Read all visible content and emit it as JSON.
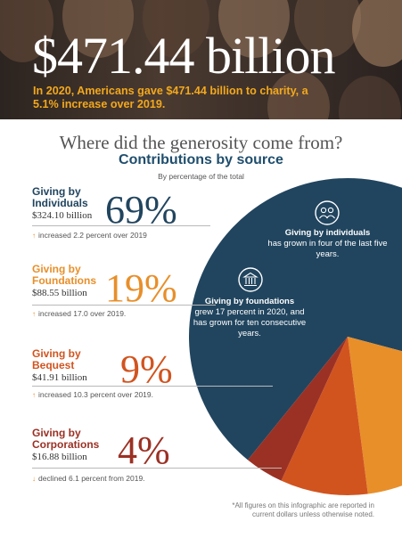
{
  "hero": {
    "headline": "$471.44 billion",
    "subhead": "In 2020, Americans gave $471.44 billion to charity, a 5.1% increase over 2019."
  },
  "section_title": "Where did the generosity come from?",
  "colors": {
    "individuals": "#21455f",
    "foundations": "#e88f2a",
    "bequest": "#d1541f",
    "corporations": "#9b3124",
    "hero_accent": "#f2a81d"
  },
  "sources": [
    {
      "label": "Giving by Individuals",
      "amount": "$324.10 billion",
      "percent_label": "69%",
      "change": "increased 2.2 percent over 2019",
      "direction": "up"
    },
    {
      "label": "Giving by Foundations",
      "amount": "$88.55 billion",
      "percent_label": "19%",
      "change": "increased 17.0 over 2019.",
      "direction": "up"
    },
    {
      "label": "Giving by Bequest",
      "amount": "$41.91 billion",
      "percent_label": "9%",
      "change": "increased 10.3 percent over 2019.",
      "direction": "up"
    },
    {
      "label": "Giving by Corporations",
      "amount": "$16.88 billion",
      "percent_label": "4%",
      "change": "declined 6.1 percent from 2019.",
      "direction": "down"
    }
  ],
  "callouts": {
    "individuals": {
      "bold": "Giving by individuals",
      "rest": "has grown in four of the last five years.",
      "icon": "people-icon"
    },
    "foundations": {
      "bold": "Giving by foundations",
      "rest": "grew 17 percent in 2020, and has grown for ten consecutive years.",
      "icon": "building-icon"
    }
  },
  "footnote": "*All figures on this infographic are reported in current dollars unless otherwise noted.",
  "chart_data": {
    "type": "pie",
    "title": "Contributions by source",
    "subtitle": "By percentage of the total",
    "categories": [
      "Giving by Individuals",
      "Giving by Foundations",
      "Giving by Bequest",
      "Giving by Corporations"
    ],
    "values": [
      69,
      19,
      9,
      4
    ],
    "amounts_billion": [
      324.1,
      88.55,
      41.91,
      16.88
    ],
    "total_billion": 471.44,
    "legend": "left"
  }
}
